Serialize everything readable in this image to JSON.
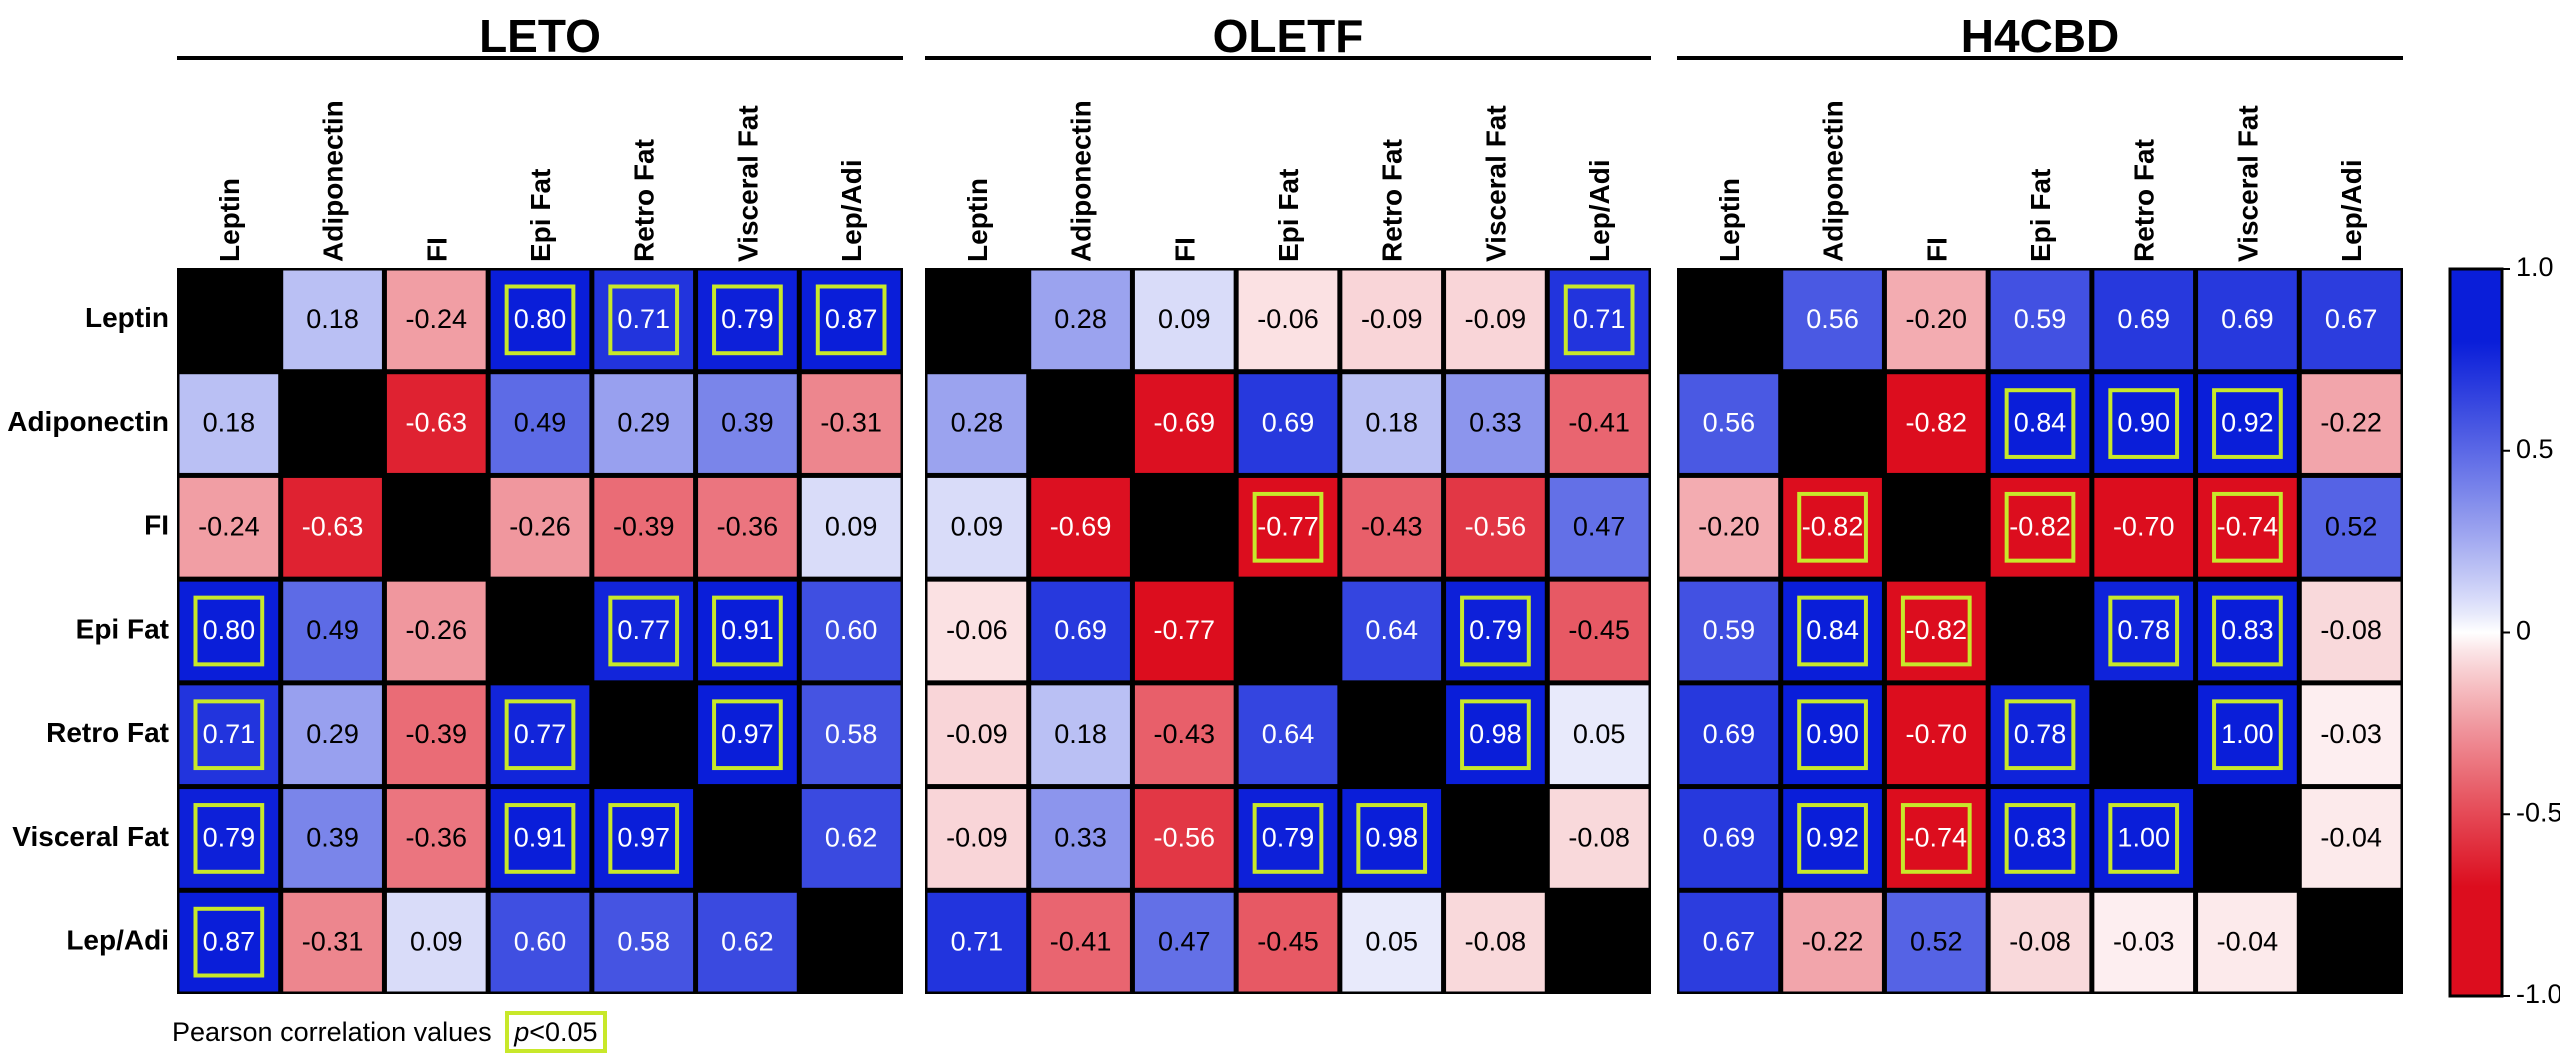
{
  "chart_data": {
    "type": "heatmap",
    "legend_title": "Pearson correlation values",
    "significance_label_italic": "p",
    "significance_label_rest": "<0.05",
    "variables": [
      "Leptin",
      "Adiponectin",
      "FI",
      "Epi Fat",
      "Retro Fat",
      "Visceral Fat",
      "Lep/Adi"
    ],
    "colorbar": {
      "range": [
        -1.0,
        1.0
      ],
      "ticks": [
        {
          "value": 1.0,
          "label": "1.0"
        },
        {
          "value": 0.5,
          "label": "0.5"
        },
        {
          "value": 0,
          "label": "0"
        },
        {
          "value": -0.5,
          "label": "-0.5"
        },
        {
          "value": -1.0,
          "label": "-1.0"
        }
      ],
      "colors": {
        "low": "#dc0d1e",
        "mid": "#ffffff",
        "high": "#0a1ed9",
        "diagonal": "#000000",
        "highlight": "#c8e82a"
      }
    },
    "panels": [
      {
        "title": "LETO",
        "values": [
          [
            null,
            0.18,
            -0.24,
            0.8,
            0.71,
            0.79,
            0.87
          ],
          [
            0.18,
            null,
            -0.63,
            0.49,
            0.29,
            0.39,
            -0.31
          ],
          [
            -0.24,
            -0.63,
            null,
            -0.26,
            -0.39,
            -0.36,
            0.09
          ],
          [
            0.8,
            0.49,
            -0.26,
            null,
            0.77,
            0.91,
            0.6
          ],
          [
            0.71,
            0.29,
            -0.39,
            0.77,
            null,
            0.97,
            0.58
          ],
          [
            0.79,
            0.39,
            -0.36,
            0.91,
            0.97,
            null,
            0.62
          ],
          [
            0.87,
            -0.31,
            0.09,
            0.6,
            0.58,
            0.62,
            null
          ]
        ],
        "labels": [
          [
            "",
            "0.18",
            "-0.24",
            "0.80",
            "0.71",
            "0.79",
            "0.87"
          ],
          [
            "0.18",
            "",
            "-0.63",
            "0.49",
            "0.29",
            "0.39",
            "-0.31"
          ],
          [
            "-0.24",
            "-0.63",
            "",
            "-0.26",
            "-0.39",
            "-0.36",
            "0.09"
          ],
          [
            "0.80",
            "0.49",
            "-0.26",
            "",
            "0.77",
            "0.91",
            "0.60"
          ],
          [
            "0.71",
            "0.29",
            "-0.39",
            "0.77",
            "",
            "0.97",
            "0.58"
          ],
          [
            "0.79",
            "0.39",
            "-0.36",
            "0.91",
            "0.97",
            "",
            "0.62"
          ],
          [
            "0.87",
            "-0.31",
            "0.09",
            "0.60",
            "0.58",
            "0.62",
            ""
          ]
        ],
        "significant": [
          [
            0,
            3
          ],
          [
            0,
            4
          ],
          [
            0,
            5
          ],
          [
            0,
            6
          ],
          [
            3,
            0
          ],
          [
            3,
            4
          ],
          [
            3,
            5
          ],
          [
            4,
            0
          ],
          [
            4,
            3
          ],
          [
            4,
            5
          ],
          [
            5,
            0
          ],
          [
            5,
            3
          ],
          [
            5,
            4
          ],
          [
            6,
            0
          ]
        ]
      },
      {
        "title": "OLETF",
        "values": [
          [
            null,
            0.28,
            0.09,
            -0.06,
            -0.09,
            -0.09,
            0.71
          ],
          [
            0.28,
            null,
            -0.69,
            0.69,
            0.18,
            0.33,
            -0.41
          ],
          [
            0.09,
            -0.69,
            null,
            -0.77,
            -0.43,
            -0.56,
            0.47
          ],
          [
            -0.06,
            0.69,
            -0.77,
            null,
            0.64,
            0.79,
            -0.45
          ],
          [
            -0.09,
            0.18,
            -0.43,
            0.64,
            null,
            0.98,
            0.05
          ],
          [
            -0.09,
            0.33,
            -0.56,
            0.79,
            0.98,
            null,
            -0.08
          ],
          [
            0.71,
            -0.41,
            0.47,
            -0.45,
            0.05,
            -0.08,
            null
          ]
        ],
        "labels": [
          [
            "",
            "0.28",
            "0.09",
            "-0.06",
            "-0.09",
            "-0.09",
            "0.71"
          ],
          [
            "0.28",
            "",
            "-0.69",
            "0.69",
            "0.18",
            "0.33",
            "-0.41"
          ],
          [
            "0.09",
            "-0.69",
            "",
            "-0.77",
            "-0.43",
            "-0.56",
            "0.47"
          ],
          [
            "-0.06",
            "0.69",
            "-0.77",
            "",
            "0.64",
            "0.79",
            "-0.45"
          ],
          [
            "-0.09",
            "0.18",
            "-0.43",
            "0.64",
            "",
            "0.98",
            "0.05"
          ],
          [
            "-0.09",
            "0.33",
            "-0.56",
            "0.79",
            "0.98",
            "",
            "-0.08"
          ],
          [
            "0.71",
            "-0.41",
            "0.47",
            "-0.45",
            "0.05",
            "-0.08",
            ""
          ]
        ],
        "significant": [
          [
            0,
            6
          ],
          [
            2,
            3
          ],
          [
            3,
            5
          ],
          [
            4,
            5
          ],
          [
            5,
            3
          ],
          [
            5,
            4
          ]
        ]
      },
      {
        "title": "H4CBD",
        "values": [
          [
            null,
            0.56,
            -0.2,
            0.59,
            0.69,
            0.69,
            0.67
          ],
          [
            0.56,
            null,
            -0.82,
            0.84,
            0.9,
            0.92,
            -0.22
          ],
          [
            -0.2,
            -0.82,
            null,
            -0.82,
            -0.7,
            -0.74,
            0.52
          ],
          [
            0.59,
            0.84,
            -0.82,
            null,
            0.78,
            0.83,
            -0.08
          ],
          [
            0.69,
            0.9,
            -0.7,
            0.78,
            null,
            1.0,
            -0.03
          ],
          [
            0.69,
            0.92,
            -0.74,
            0.83,
            1.0,
            null,
            -0.04
          ],
          [
            0.67,
            -0.22,
            0.52,
            -0.08,
            -0.03,
            -0.04,
            null
          ]
        ],
        "labels": [
          [
            "",
            "0.56",
            "-0.20",
            "0.59",
            "0.69",
            "0.69",
            "0.67"
          ],
          [
            "0.56",
            "",
            "-0.82",
            "0.84",
            "0.90",
            "0.92",
            "-0.22"
          ],
          [
            "-0.20",
            "-0.82",
            "",
            "-0.82",
            "-0.70",
            "-0.74",
            "0.52"
          ],
          [
            "0.59",
            "0.84",
            "-0.82",
            "",
            "0.78",
            "0.83",
            "-0.08"
          ],
          [
            "0.69",
            "0.90",
            "-0.70",
            "0.78",
            "",
            "1.00",
            "-0.03"
          ],
          [
            "0.69",
            "0.92",
            "-0.74",
            "0.83",
            "1.00",
            "",
            "-0.04"
          ],
          [
            "0.67",
            "-0.22",
            "0.52",
            "-0.08",
            "-0.03",
            "-0.04",
            ""
          ]
        ],
        "significant": [
          [
            1,
            3
          ],
          [
            1,
            4
          ],
          [
            1,
            5
          ],
          [
            2,
            1
          ],
          [
            2,
            3
          ],
          [
            2,
            5
          ],
          [
            3,
            1
          ],
          [
            3,
            2
          ],
          [
            3,
            4
          ],
          [
            3,
            5
          ],
          [
            4,
            1
          ],
          [
            4,
            3
          ],
          [
            4,
            5
          ],
          [
            5,
            1
          ],
          [
            5,
            2
          ],
          [
            5,
            3
          ],
          [
            5,
            4
          ]
        ]
      }
    ]
  }
}
